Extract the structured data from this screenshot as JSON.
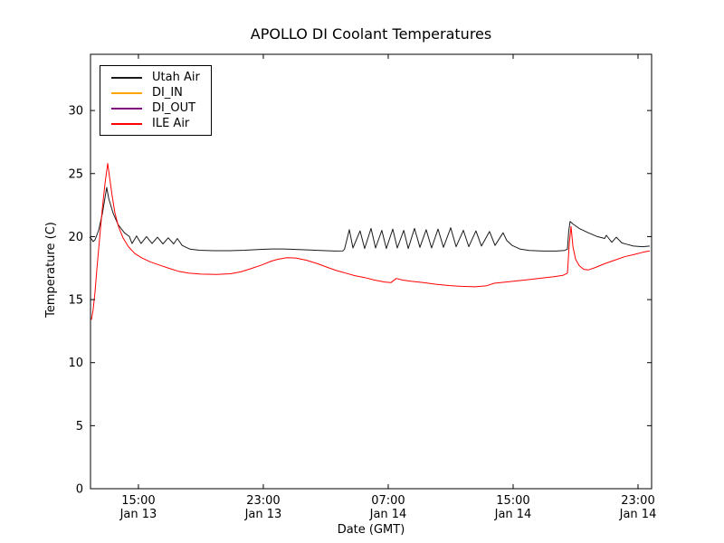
{
  "figure": {
    "background": "#ffffff",
    "frame_color": "#000000"
  },
  "chart_data": {
    "type": "line",
    "title": "APOLLO DI Coolant Temperatures",
    "xlabel": "Date (GMT)",
    "ylabel": "Temperature (C)",
    "grid": false,
    "x_unit": "hours since Jan 13 00:00 GMT",
    "xlim": [
      11.93,
      47.87
    ],
    "ylim": [
      0,
      34.46
    ],
    "y_ticks": [
      0,
      5,
      10,
      15,
      20,
      25,
      30
    ],
    "x_ticks": [
      {
        "value": 15,
        "time": "15:00",
        "date": "Jan 13"
      },
      {
        "value": 23,
        "time": "23:00",
        "date": "Jan 13"
      },
      {
        "value": 31,
        "time": "07:00",
        "date": "Jan 14"
      },
      {
        "value": 39,
        "time": "15:00",
        "date": "Jan 14"
      },
      {
        "value": 47,
        "time": "23:00",
        "date": "Jan 14"
      }
    ],
    "legend": {
      "position": "upper left",
      "entries": [
        {
          "label": "Utah Air",
          "color": "#1a1a1a"
        },
        {
          "label": "DI_IN",
          "color": "#ffa500"
        },
        {
          "label": "DI_OUT",
          "color": "#800080"
        },
        {
          "label": "ILE Air",
          "color": "#ff0000"
        }
      ]
    },
    "series": [
      {
        "name": "Utah Air",
        "color": "#1a1a1a",
        "linewidth": 1,
        "points": [
          [
            11.87,
            19.95
          ],
          [
            12.0,
            19.8
          ],
          [
            12.1,
            19.6
          ],
          [
            12.22,
            19.75
          ],
          [
            12.45,
            20.5
          ],
          [
            12.7,
            21.9
          ],
          [
            12.97,
            23.9
          ],
          [
            13.1,
            23.0
          ],
          [
            13.38,
            21.85
          ],
          [
            13.7,
            20.95
          ],
          [
            14.1,
            20.3
          ],
          [
            14.42,
            20.0
          ],
          [
            14.59,
            19.45
          ],
          [
            14.88,
            20.05
          ],
          [
            15.17,
            19.45
          ],
          [
            15.52,
            20.0
          ],
          [
            15.87,
            19.45
          ],
          [
            16.22,
            19.95
          ],
          [
            16.57,
            19.42
          ],
          [
            16.91,
            19.9
          ],
          [
            17.26,
            19.42
          ],
          [
            17.49,
            19.85
          ],
          [
            17.8,
            19.3
          ],
          [
            18.3,
            19.0
          ],
          [
            18.9,
            18.92
          ],
          [
            19.8,
            18.88
          ],
          [
            20.8,
            18.88
          ],
          [
            21.8,
            18.92
          ],
          [
            22.8,
            18.98
          ],
          [
            23.52,
            19.02
          ],
          [
            24.3,
            19.02
          ],
          [
            25.1,
            18.98
          ],
          [
            26.0,
            18.93
          ],
          [
            27.0,
            18.88
          ],
          [
            27.6,
            18.85
          ],
          [
            28.1,
            18.87
          ],
          [
            28.2,
            19.0
          ],
          [
            28.51,
            20.55
          ],
          [
            28.74,
            19.1
          ],
          [
            29.2,
            20.45
          ],
          [
            29.49,
            19.05
          ],
          [
            29.9,
            20.65
          ],
          [
            30.19,
            19.1
          ],
          [
            30.59,
            20.5
          ],
          [
            30.88,
            19.05
          ],
          [
            31.29,
            20.6
          ],
          [
            31.58,
            19.1
          ],
          [
            31.99,
            20.5
          ],
          [
            32.28,
            19.05
          ],
          [
            32.68,
            20.65
          ],
          [
            33.03,
            19.15
          ],
          [
            33.43,
            20.55
          ],
          [
            33.78,
            19.1
          ],
          [
            34.19,
            20.6
          ],
          [
            34.54,
            19.15
          ],
          [
            35.0,
            20.7
          ],
          [
            35.35,
            19.2
          ],
          [
            35.81,
            20.5
          ],
          [
            36.16,
            19.2
          ],
          [
            36.62,
            20.45
          ],
          [
            36.97,
            19.25
          ],
          [
            37.49,
            20.4
          ],
          [
            37.84,
            19.3
          ],
          [
            38.36,
            20.3
          ],
          [
            38.59,
            19.7
          ],
          [
            38.94,
            19.3
          ],
          [
            39.46,
            19.0
          ],
          [
            40.04,
            18.9
          ],
          [
            40.91,
            18.85
          ],
          [
            41.78,
            18.85
          ],
          [
            42.3,
            18.9
          ],
          [
            42.48,
            19.0
          ],
          [
            42.56,
            20.4
          ],
          [
            42.65,
            21.2
          ],
          [
            42.83,
            21.0
          ],
          [
            43.23,
            20.65
          ],
          [
            43.81,
            20.3
          ],
          [
            44.39,
            20.0
          ],
          [
            44.86,
            19.85
          ],
          [
            44.97,
            20.1
          ],
          [
            45.32,
            19.55
          ],
          [
            45.61,
            19.95
          ],
          [
            45.96,
            19.5
          ],
          [
            46.25,
            19.4
          ],
          [
            46.71,
            19.25
          ],
          [
            47.29,
            19.2
          ],
          [
            47.75,
            19.25
          ]
        ]
      },
      {
        "name": "DI_IN",
        "color": "#ffa500",
        "linewidth": 1,
        "points": []
      },
      {
        "name": "DI_OUT",
        "color": "#800080",
        "linewidth": 1,
        "points": []
      },
      {
        "name": "ILE Air",
        "color": "#ff0000",
        "linewidth": 1,
        "points": [
          [
            11.99,
            13.4
          ],
          [
            12.1,
            14.2
          ],
          [
            12.22,
            15.6
          ],
          [
            12.33,
            17.3
          ],
          [
            12.51,
            19.8
          ],
          [
            12.68,
            22.1
          ],
          [
            12.86,
            24.2
          ],
          [
            13.03,
            25.8
          ],
          [
            13.14,
            24.8
          ],
          [
            13.32,
            23.2
          ],
          [
            13.49,
            21.9
          ],
          [
            13.72,
            20.8
          ],
          [
            14.01,
            19.9
          ],
          [
            14.36,
            19.2
          ],
          [
            14.77,
            18.65
          ],
          [
            15.23,
            18.3
          ],
          [
            15.75,
            18.0
          ],
          [
            16.33,
            17.75
          ],
          [
            17.03,
            17.45
          ],
          [
            17.55,
            17.25
          ],
          [
            18.2,
            17.1
          ],
          [
            19.0,
            17.02
          ],
          [
            20.0,
            17.0
          ],
          [
            20.9,
            17.05
          ],
          [
            21.55,
            17.2
          ],
          [
            22.2,
            17.45
          ],
          [
            22.9,
            17.75
          ],
          [
            23.5,
            18.05
          ],
          [
            23.93,
            18.2
          ],
          [
            24.51,
            18.32
          ],
          [
            25.09,
            18.3
          ],
          [
            25.78,
            18.12
          ],
          [
            26.48,
            17.85
          ],
          [
            27.12,
            17.55
          ],
          [
            27.7,
            17.3
          ],
          [
            28.28,
            17.1
          ],
          [
            28.86,
            16.9
          ],
          [
            29.49,
            16.75
          ],
          [
            30.13,
            16.55
          ],
          [
            30.77,
            16.4
          ],
          [
            31.17,
            16.35
          ],
          [
            31.52,
            16.68
          ],
          [
            31.93,
            16.55
          ],
          [
            32.51,
            16.45
          ],
          [
            33.26,
            16.35
          ],
          [
            34.07,
            16.22
          ],
          [
            34.88,
            16.12
          ],
          [
            35.7,
            16.05
          ],
          [
            36.57,
            16.02
          ],
          [
            37.32,
            16.1
          ],
          [
            37.78,
            16.3
          ],
          [
            38.48,
            16.38
          ],
          [
            39.29,
            16.5
          ],
          [
            40.1,
            16.6
          ],
          [
            40.91,
            16.72
          ],
          [
            41.61,
            16.82
          ],
          [
            42.19,
            16.92
          ],
          [
            42.48,
            17.1
          ],
          [
            42.6,
            19.5
          ],
          [
            42.71,
            20.8
          ],
          [
            42.83,
            19.2
          ],
          [
            43.0,
            18.2
          ],
          [
            43.23,
            17.7
          ],
          [
            43.52,
            17.4
          ],
          [
            43.81,
            17.35
          ],
          [
            44.28,
            17.55
          ],
          [
            44.86,
            17.85
          ],
          [
            45.44,
            18.1
          ],
          [
            46.13,
            18.4
          ],
          [
            46.83,
            18.6
          ],
          [
            47.29,
            18.75
          ],
          [
            47.75,
            18.87
          ]
        ]
      }
    ]
  }
}
